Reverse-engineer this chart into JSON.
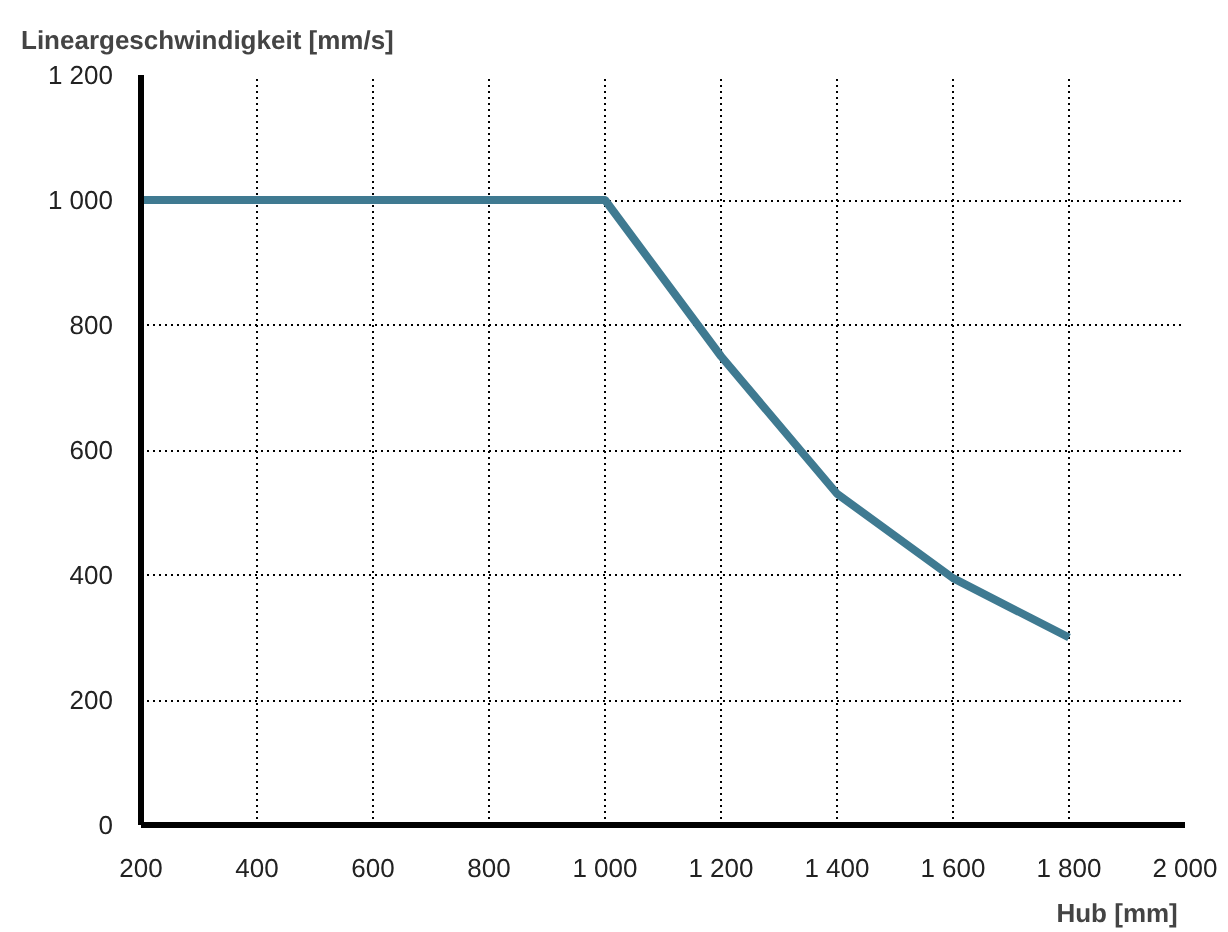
{
  "chart_data": {
    "type": "line",
    "ylabel": "Lineargeschwindigkeit [mm/s]",
    "xlabel": "Hub  [mm]",
    "x": [
      200,
      1000,
      1200,
      1400,
      1600,
      1800
    ],
    "series": [
      {
        "color": "#3f7a91",
        "values": [
          1000,
          1000,
          750,
          530,
          395,
          300
        ]
      }
    ],
    "xlim": [
      200,
      2000
    ],
    "ylim": [
      0,
      1200
    ],
    "xticks": [
      200,
      400,
      600,
      800,
      {
        "value": 1000,
        "label": "1 000"
      },
      {
        "value": 1200,
        "label": "1 200"
      },
      {
        "value": 1400,
        "label": "1 400"
      },
      {
        "value": 1600,
        "label": "1 600"
      },
      {
        "value": 1800,
        "label": "1 800"
      },
      {
        "value": 2000,
        "label": "2 000"
      }
    ],
    "yticks": [
      0,
      200,
      400,
      600,
      800,
      {
        "value": 1000,
        "label": "1 000"
      },
      {
        "value": 1200,
        "label": "1 200"
      }
    ],
    "grid": true,
    "marker": "none",
    "line_style": "solid"
  }
}
